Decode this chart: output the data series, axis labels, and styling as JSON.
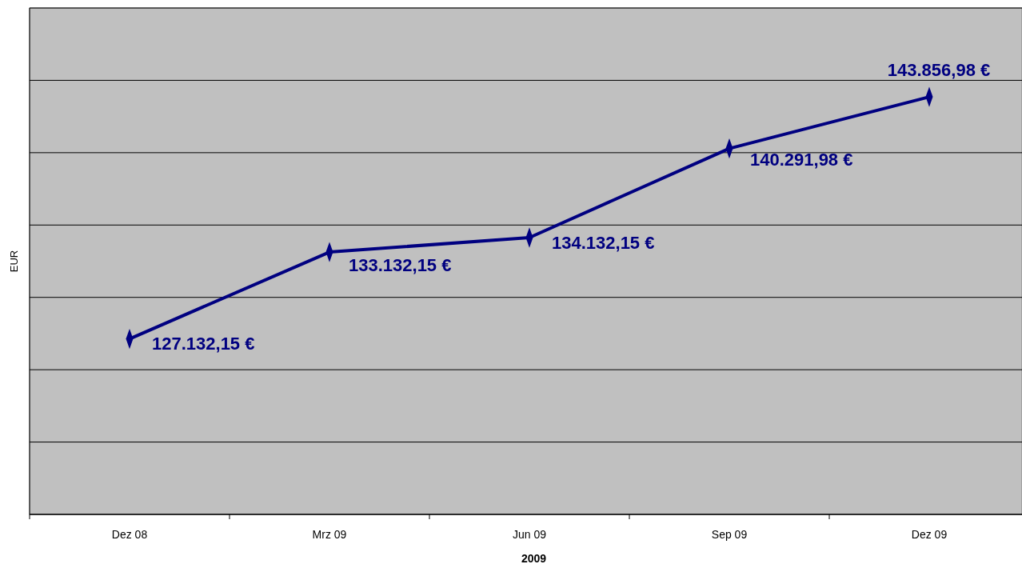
{
  "chart_data": {
    "type": "line",
    "xlabel": "2009",
    "ylabel": "EUR",
    "categories": [
      "Dez 08",
      "Mrz 09",
      "Jun 09",
      "Sep 09",
      "Dez 09"
    ],
    "series": [
      {
        "color": "#000080",
        "values": [
          127132.15,
          133132.15,
          134132.15,
          140291.98,
          143856.98
        ],
        "value_labels": [
          "127.132,15 €",
          "133.132,15 €",
          "134.132,15 €",
          "140.291,98 €",
          "143.856,98 €"
        ]
      }
    ],
    "ylim": [
      115000,
      150000
    ],
    "yticks": [
      {
        "value": 115000,
        "label": null
      },
      {
        "value": 120000,
        "label": null
      },
      {
        "value": 125000,
        "label": null
      },
      {
        "value": 130000,
        "label": null
      },
      {
        "value": 135000,
        "label": null
      },
      {
        "value": 140000,
        "label": null
      },
      {
        "value": 145000,
        "label": null
      },
      {
        "value": 150000,
        "label": null
      }
    ],
    "tick_labels": "x",
    "grid": "y",
    "marker": "diamond",
    "line_style": "solid"
  }
}
